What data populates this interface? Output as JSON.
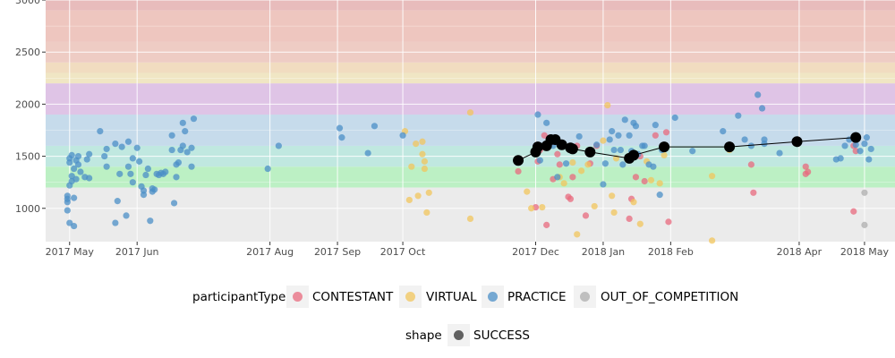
{
  "chart_data": {
    "type": "scatter",
    "x_axis": {
      "type": "date",
      "range": [
        "2017-04-20",
        "2018-05-15"
      ],
      "ticks": [
        {
          "date": "2017-05-01",
          "label": "2017 May"
        },
        {
          "date": "2017-06-01",
          "label": "2017 Jun"
        },
        {
          "date": "2017-08-01",
          "label": "2017 Aug"
        },
        {
          "date": "2017-09-01",
          "label": "2017 Sep"
        },
        {
          "date": "2017-10-01",
          "label": "2017 Oct"
        },
        {
          "date": "2017-12-01",
          "label": "2017 Dec"
        },
        {
          "date": "2018-01-01",
          "label": "2018 Jan"
        },
        {
          "date": "2018-02-01",
          "label": "2018 Feb"
        },
        {
          "date": "2018-04-01",
          "label": "2018 Apr"
        },
        {
          "date": "2018-05-01",
          "label": "2018 May"
        }
      ]
    },
    "y_axis": {
      "range": [
        680,
        3000
      ],
      "ticks": [
        1000,
        1500,
        2000,
        2500,
        3000
      ],
      "tick_labels": [
        "1000",
        "1500",
        "2000",
        "2500",
        "3000"
      ]
    },
    "grid": true,
    "rating_bands": [
      {
        "from": 680,
        "to": 1200,
        "color": "#ebebeb"
      },
      {
        "from": 1200,
        "to": 1400,
        "color": "#bcf0c4"
      },
      {
        "from": 1400,
        "to": 1600,
        "color": "#c0e8e0"
      },
      {
        "from": 1600,
        "to": 1900,
        "color": "#c6dbeb"
      },
      {
        "from": 1900,
        "to": 2200,
        "color": "#dfc4e6"
      },
      {
        "from": 2200,
        "to": 2300,
        "color": "#f0e6c4"
      },
      {
        "from": 2300,
        "to": 2400,
        "color": "#f1dcc0"
      },
      {
        "from": 2400,
        "to": 2600,
        "color": "#eeccc4"
      },
      {
        "from": 2600,
        "to": 2900,
        "color": "#eec6bf"
      },
      {
        "from": 2900,
        "to": 3000,
        "color": "#e8bcbc"
      }
    ],
    "series": [
      {
        "name": "CONTESTANT",
        "color": "#e8697e",
        "points": [
          [
            "2017-11-23",
            1355
          ],
          [
            "2017-12-01",
            1010
          ],
          [
            "2017-12-02",
            1450
          ],
          [
            "2017-12-03",
            1560
          ],
          [
            "2017-12-05",
            1700
          ],
          [
            "2017-12-06",
            840
          ],
          [
            "2017-12-08",
            1630
          ],
          [
            "2017-12-09",
            1280
          ],
          [
            "2017-12-11",
            1520
          ],
          [
            "2017-12-12",
            1420
          ],
          [
            "2017-12-13",
            1610
          ],
          [
            "2017-12-16",
            1110
          ],
          [
            "2017-12-17",
            1090
          ],
          [
            "2017-12-18",
            1300
          ],
          [
            "2017-12-20",
            1600
          ],
          [
            "2017-12-24",
            930
          ],
          [
            "2017-12-26",
            1430
          ],
          [
            "2017-12-29",
            1600
          ],
          [
            "2018-01-13",
            900
          ],
          [
            "2018-01-14",
            1090
          ],
          [
            "2018-01-16",
            1300
          ],
          [
            "2018-01-18",
            1500
          ],
          [
            "2018-01-20",
            1260
          ],
          [
            "2018-01-25",
            1700
          ],
          [
            "2018-01-30",
            1730
          ],
          [
            "2018-01-31",
            870
          ],
          [
            "2018-03-10",
            1420
          ],
          [
            "2018-03-11",
            1150
          ],
          [
            "2018-04-04",
            1400
          ],
          [
            "2018-04-04",
            1330
          ],
          [
            "2018-04-05",
            1350
          ],
          [
            "2018-04-26",
            970
          ],
          [
            "2018-04-26",
            1600
          ],
          [
            "2018-04-27",
            1550
          ]
        ]
      },
      {
        "name": "VIRTUAL",
        "color": "#f2c55c",
        "points": [
          [
            "2017-10-02",
            1740
          ],
          [
            "2017-10-04",
            1080
          ],
          [
            "2017-10-05",
            1400
          ],
          [
            "2017-10-07",
            1620
          ],
          [
            "2017-10-08",
            1120
          ],
          [
            "2017-10-10",
            1640
          ],
          [
            "2017-10-10",
            1520
          ],
          [
            "2017-10-11",
            1450
          ],
          [
            "2017-10-11",
            1380
          ],
          [
            "2017-10-12",
            960
          ],
          [
            "2017-10-13",
            1150
          ],
          [
            "2017-11-01",
            1920
          ],
          [
            "2017-11-01",
            900
          ],
          [
            "2017-11-27",
            1160
          ],
          [
            "2017-11-29",
            1000
          ],
          [
            "2017-12-04",
            1010
          ],
          [
            "2017-12-12",
            1300
          ],
          [
            "2017-12-14",
            1240
          ],
          [
            "2017-12-18",
            1440
          ],
          [
            "2017-12-20",
            750
          ],
          [
            "2017-12-22",
            1360
          ],
          [
            "2017-12-25",
            1420
          ],
          [
            "2017-12-28",
            1020
          ],
          [
            "2018-01-01",
            1650
          ],
          [
            "2018-01-03",
            1990
          ],
          [
            "2018-01-05",
            1120
          ],
          [
            "2018-01-06",
            960
          ],
          [
            "2018-01-07",
            1480
          ],
          [
            "2018-01-15",
            1060
          ],
          [
            "2018-01-18",
            850
          ],
          [
            "2018-01-21",
            1450
          ],
          [
            "2018-01-23",
            1270
          ],
          [
            "2018-01-27",
            1240
          ],
          [
            "2018-01-29",
            1510
          ],
          [
            "2018-02-20",
            1310
          ],
          [
            "2018-02-20",
            690
          ],
          [
            "2018-02-28",
            1560
          ]
        ]
      },
      {
        "name": "PRACTICE",
        "color": "#4b8fc7",
        "points": [
          [
            "2017-04-30",
            1090
          ],
          [
            "2017-04-30",
            1120
          ],
          [
            "2017-04-30",
            1060
          ],
          [
            "2017-04-30",
            980
          ],
          [
            "2017-05-01",
            1220
          ],
          [
            "2017-05-01",
            860
          ],
          [
            "2017-05-01",
            1440
          ],
          [
            "2017-05-01",
            1480
          ],
          [
            "2017-05-02",
            1510
          ],
          [
            "2017-05-02",
            1310
          ],
          [
            "2017-05-02",
            1260
          ],
          [
            "2017-05-03",
            1100
          ],
          [
            "2017-05-03",
            830
          ],
          [
            "2017-05-03",
            1380
          ],
          [
            "2017-05-04",
            1280
          ],
          [
            "2017-05-04",
            1460
          ],
          [
            "2017-05-05",
            1420
          ],
          [
            "2017-05-05",
            1500
          ],
          [
            "2017-05-06",
            1350
          ],
          [
            "2017-05-08",
            1300
          ],
          [
            "2017-05-09",
            1470
          ],
          [
            "2017-05-10",
            1520
          ],
          [
            "2017-05-10",
            1290
          ],
          [
            "2017-05-15",
            1740
          ],
          [
            "2017-05-17",
            1500
          ],
          [
            "2017-05-18",
            1570
          ],
          [
            "2017-05-18",
            1400
          ],
          [
            "2017-05-22",
            1620
          ],
          [
            "2017-05-22",
            860
          ],
          [
            "2017-05-23",
            1070
          ],
          [
            "2017-05-24",
            1330
          ],
          [
            "2017-05-25",
            1590
          ],
          [
            "2017-05-27",
            930
          ],
          [
            "2017-05-28",
            1640
          ],
          [
            "2017-05-28",
            1400
          ],
          [
            "2017-05-29",
            1330
          ],
          [
            "2017-05-30",
            1250
          ],
          [
            "2017-05-30",
            1480
          ],
          [
            "2017-06-01",
            1580
          ],
          [
            "2017-06-02",
            1450
          ],
          [
            "2017-06-03",
            1210
          ],
          [
            "2017-06-04",
            1170
          ],
          [
            "2017-06-04",
            1130
          ],
          [
            "2017-06-05",
            1320
          ],
          [
            "2017-06-06",
            1380
          ],
          [
            "2017-06-07",
            880
          ],
          [
            "2017-06-08",
            1160
          ],
          [
            "2017-06-08",
            1190
          ],
          [
            "2017-06-09",
            1180
          ],
          [
            "2017-06-10",
            1330
          ],
          [
            "2017-06-11",
            1320
          ],
          [
            "2017-06-12",
            1340
          ],
          [
            "2017-06-13",
            1330
          ],
          [
            "2017-06-14",
            1350
          ],
          [
            "2017-06-17",
            1700
          ],
          [
            "2017-06-17",
            1560
          ],
          [
            "2017-06-18",
            1050
          ],
          [
            "2017-06-19",
            1300
          ],
          [
            "2017-06-19",
            1420
          ],
          [
            "2017-06-20",
            1440
          ],
          [
            "2017-06-21",
            1560
          ],
          [
            "2017-06-22",
            1600
          ],
          [
            "2017-06-22",
            1820
          ],
          [
            "2017-06-23",
            1740
          ],
          [
            "2017-06-24",
            1540
          ],
          [
            "2017-06-26",
            1580
          ],
          [
            "2017-06-26",
            1400
          ],
          [
            "2017-06-27",
            1860
          ],
          [
            "2017-07-31",
            1380
          ],
          [
            "2017-08-05",
            1600
          ],
          [
            "2017-09-02",
            1770
          ],
          [
            "2017-09-03",
            1680
          ],
          [
            "2017-09-15",
            1530
          ],
          [
            "2017-09-18",
            1790
          ],
          [
            "2017-10-01",
            1700
          ],
          [
            "2017-12-02",
            1900
          ],
          [
            "2017-12-03",
            1460
          ],
          [
            "2017-12-06",
            1820
          ],
          [
            "2017-12-09",
            1600
          ],
          [
            "2017-12-11",
            1300
          ],
          [
            "2017-12-15",
            1430
          ],
          [
            "2017-12-21",
            1690
          ],
          [
            "2017-12-29",
            1610
          ],
          [
            "2018-01-01",
            1230
          ],
          [
            "2018-01-02",
            1430
          ],
          [
            "2018-01-04",
            1660
          ],
          [
            "2018-01-05",
            1740
          ],
          [
            "2018-01-06",
            1560
          ],
          [
            "2018-01-08",
            1700
          ],
          [
            "2018-01-09",
            1560
          ],
          [
            "2018-01-10",
            1420
          ],
          [
            "2018-01-11",
            1850
          ],
          [
            "2018-01-13",
            1700
          ],
          [
            "2018-01-14",
            1550
          ],
          [
            "2018-01-15",
            1820
          ],
          [
            "2018-01-16",
            1790
          ],
          [
            "2018-01-17",
            1520
          ],
          [
            "2018-01-19",
            1600
          ],
          [
            "2018-01-20",
            1600
          ],
          [
            "2018-01-22",
            1420
          ],
          [
            "2018-01-24",
            1400
          ],
          [
            "2018-01-25",
            1800
          ],
          [
            "2018-01-27",
            1130
          ],
          [
            "2018-01-28",
            1560
          ],
          [
            "2018-02-03",
            1870
          ],
          [
            "2018-02-11",
            1550
          ],
          [
            "2018-02-25",
            1740
          ],
          [
            "2018-03-04",
            1890
          ],
          [
            "2018-03-07",
            1660
          ],
          [
            "2018-03-10",
            1600
          ],
          [
            "2018-03-13",
            2090
          ],
          [
            "2018-03-15",
            1960
          ],
          [
            "2018-03-16",
            1620
          ],
          [
            "2018-03-16",
            1660
          ],
          [
            "2018-03-23",
            1530
          ],
          [
            "2018-04-18",
            1470
          ],
          [
            "2018-04-20",
            1480
          ],
          [
            "2018-04-22",
            1600
          ],
          [
            "2018-04-24",
            1660
          ],
          [
            "2018-04-27",
            1610
          ],
          [
            "2018-04-29",
            1550
          ],
          [
            "2018-05-01",
            1620
          ],
          [
            "2018-05-02",
            1680
          ],
          [
            "2018-05-03",
            1470
          ],
          [
            "2018-05-04",
            1570
          ]
        ]
      },
      {
        "name": "OUT_OF_COMPETITION",
        "color": "#aeaeae",
        "points": [
          [
            "2018-05-01",
            1150
          ],
          [
            "2018-05-01",
            840
          ]
        ]
      }
    ],
    "rating_history": {
      "color": "#000000",
      "points": [
        [
          "2017-11-23",
          1460
        ],
        [
          "2017-12-01",
          1540
        ],
        [
          "2017-12-02",
          1590
        ],
        [
          "2017-12-06",
          1600
        ],
        [
          "2017-12-08",
          1660
        ],
        [
          "2017-12-10",
          1660
        ],
        [
          "2017-12-13",
          1610
        ],
        [
          "2017-12-17",
          1580
        ],
        [
          "2017-12-18",
          1570
        ],
        [
          "2017-12-26",
          1540
        ],
        [
          "2018-01-13",
          1480
        ],
        [
          "2018-01-15",
          1510
        ],
        [
          "2018-01-29",
          1590
        ],
        [
          "2018-02-28",
          1590
        ],
        [
          "2018-03-31",
          1640
        ],
        [
          "2018-04-27",
          1680
        ]
      ]
    },
    "legend": {
      "placement": "bottom",
      "color_title": "participantType",
      "color_items": [
        "CONTESTANT",
        "VIRTUAL",
        "PRACTICE",
        "OUT_OF_COMPETITION"
      ],
      "shape_title": "shape",
      "shape_items": [
        "SUCCESS"
      ]
    }
  }
}
